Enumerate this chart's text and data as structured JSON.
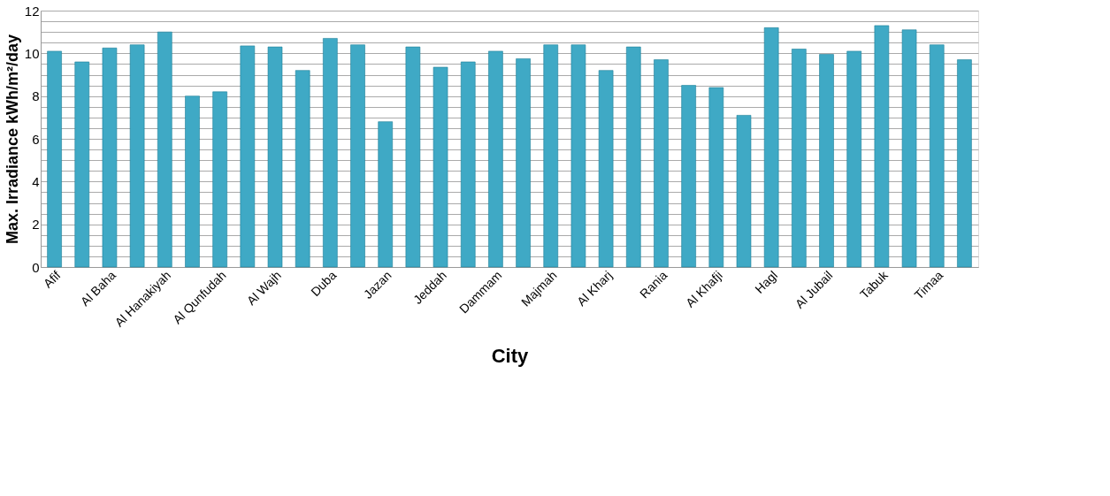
{
  "chart_data": {
    "type": "bar",
    "xlabel": "City",
    "ylabel": "Max. Irradiance  kWh/m²/day",
    "categories": [
      "Afif",
      null,
      "Al Baha",
      null,
      "Al Hanakiyah",
      null,
      "Al Qunfudah",
      null,
      "Al Wajh",
      null,
      "Duba",
      null,
      "Jazan",
      null,
      "Jeddah",
      null,
      "Dammam",
      null,
      "Majmah",
      null,
      "Al Kharj",
      null,
      "Rania",
      null,
      "Al Khafji",
      null,
      "Hagl",
      null,
      "Al Jubail",
      null,
      "Tabuk",
      null,
      "Timaa",
      null
    ],
    "values": [
      10.1,
      9.6,
      10.25,
      10.4,
      11.0,
      8.0,
      8.2,
      10.35,
      10.3,
      9.2,
      10.7,
      10.4,
      6.8,
      10.3,
      9.35,
      9.6,
      10.1,
      9.75,
      10.4,
      10.4,
      9.2,
      10.3,
      9.7,
      8.5,
      8.4,
      7.1,
      11.2,
      10.2,
      9.95,
      10.1,
      11.3,
      11.1,
      10.4,
      9.7
    ],
    "color": "#3fa9c5",
    "ylim": [
      0,
      12
    ],
    "yticks": [
      0,
      {
        "value": 0.5,
        "label": null
      },
      2,
      {
        "value": 1.5,
        "label": null
      },
      {
        "value": 1,
        "label": null
      },
      {
        "value": 2.5,
        "label": null
      },
      {
        "value": 3,
        "label": null
      },
      {
        "value": 3.5,
        "label": null
      },
      4,
      {
        "value": 4.5,
        "label": null
      },
      {
        "value": 5,
        "label": null
      },
      {
        "value": 5.5,
        "label": null
      },
      6,
      {
        "value": 6.5,
        "label": null
      },
      {
        "value": 7,
        "label": null
      },
      {
        "value": 7.5,
        "label": null
      },
      8,
      {
        "value": 8.5,
        "label": null
      },
      {
        "value": 9,
        "label": null
      },
      {
        "value": 9.5,
        "label": null
      },
      10,
      {
        "value": 10.5,
        "label": null
      },
      {
        "value": 11,
        "label": null
      },
      {
        "value": 11.5,
        "label": null
      },
      12
    ],
    "grid": true
  }
}
